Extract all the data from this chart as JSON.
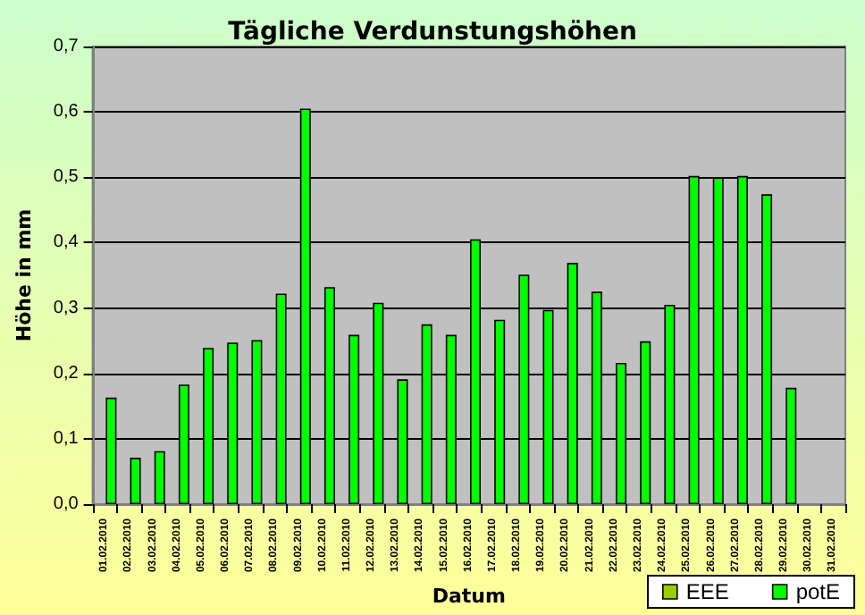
{
  "chart_data": {
    "type": "bar",
    "title": "Tägliche Verdunstungshöhen",
    "xlabel": "Datum",
    "ylabel": "Höhe in mm",
    "categories": [
      "01.02.2010",
      "02.02.2010",
      "03.02.2010",
      "04.02.2010",
      "05.02.2010",
      "06.02.2010",
      "07.02.2010",
      "08.02.2010",
      "09.02.2010",
      "10.02.2010",
      "11.02.2010",
      "12.02.2010",
      "13.02.2010",
      "14.02.2010",
      "15.02.2010",
      "16.02.2010",
      "17.02.2010",
      "18.02.2010",
      "19.02.2010",
      "20.02.2010",
      "21.02.2010",
      "22.02.2010",
      "23.02.2010",
      "24.02.2010",
      "25.02.2010",
      "26.02.2010",
      "27.02.2010",
      "28.02.2010",
      "29.02.2010",
      "30.02.2010",
      "31.02.2010"
    ],
    "series": [
      {
        "name": "EEE",
        "color": "#99cc00",
        "values": [
          null,
          null,
          null,
          null,
          null,
          null,
          null,
          null,
          null,
          null,
          null,
          null,
          null,
          null,
          null,
          null,
          null,
          null,
          null,
          null,
          null,
          null,
          null,
          null,
          null,
          null,
          null,
          null,
          null,
          null,
          null
        ]
      },
      {
        "name": "potE",
        "color": "#00ff00",
        "values": [
          0.163,
          0.071,
          0.081,
          0.183,
          0.239,
          0.247,
          0.251,
          0.322,
          0.605,
          0.332,
          0.259,
          0.308,
          0.191,
          0.275,
          0.259,
          0.405,
          0.282,
          0.351,
          0.297,
          0.369,
          0.325,
          0.216,
          0.249,
          0.305,
          0.502,
          0.5,
          0.502,
          0.474,
          0.178,
          null,
          null
        ]
      }
    ],
    "ylim": [
      0,
      0.7
    ],
    "yticks": [
      {
        "value": 0,
        "label": "0,0"
      },
      {
        "value": 0.1,
        "label": "0,1"
      },
      {
        "value": 0.2,
        "label": "0,2"
      },
      {
        "value": 0.3,
        "label": "0,3"
      },
      {
        "value": 0.4,
        "label": "0,4"
      },
      {
        "value": 0.5,
        "label": "0,5"
      },
      {
        "value": 0.6,
        "label": "0,6"
      },
      {
        "value": 0.7,
        "label": "0,7"
      }
    ],
    "grid": "y",
    "legend": "bottom right"
  }
}
